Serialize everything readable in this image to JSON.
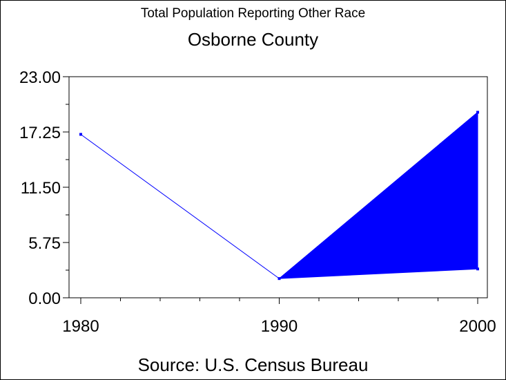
{
  "chart_data": {
    "type": "line",
    "title": "Total Population Reporting Other Race",
    "subtitle": "Osborne County",
    "source": "Source: U.S. Census Bureau",
    "x": [
      1980,
      1990,
      2000
    ],
    "x_tick_labels": [
      "1980",
      "1990",
      "2000"
    ],
    "series": [
      {
        "values": [
          17,
          2,
          19.3
        ]
      }
    ],
    "band": {
      "x": [
        1990,
        2000
      ],
      "lower": [
        2,
        3
      ],
      "upper": [
        2,
        19.3
      ]
    },
    "y_tick_labels": [
      "0.00",
      "5.75",
      "11.50",
      "17.25",
      "23.00"
    ],
    "y_ticks": [
      0,
      5.75,
      11.5,
      17.25,
      23
    ],
    "ylim": [
      0,
      23
    ],
    "xlim": [
      1980,
      2000
    ],
    "grid": false,
    "color": "#0000ff"
  }
}
